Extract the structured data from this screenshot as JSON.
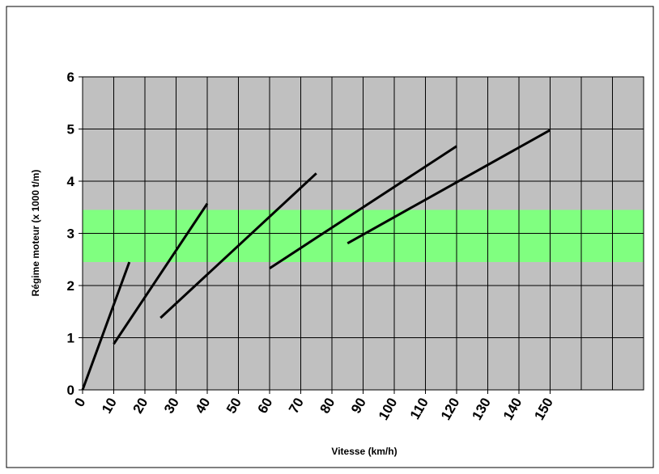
{
  "chart_data": {
    "type": "line",
    "xlabel": "Vitesse (km/h)",
    "ylabel": "Régime moteur (x 1000 t/m)",
    "xlim": [
      0,
      180
    ],
    "ylim": [
      0,
      6
    ],
    "xticks": [
      0,
      10,
      20,
      30,
      40,
      50,
      60,
      70,
      80,
      90,
      100,
      110,
      120,
      130,
      140,
      150
    ],
    "xgrid_extra": [
      160,
      170
    ],
    "yticks": [
      0,
      1,
      2,
      3,
      4,
      5,
      6
    ],
    "grid": true,
    "background": "#c0c0c0",
    "band": [
      2.45,
      3.45
    ],
    "band_color": "#80ff80",
    "series": [
      {
        "color": "#000000",
        "x": [
          0,
          15
        ],
        "values": [
          0,
          2.45
        ]
      },
      {
        "color": "#000000",
        "x": [
          10,
          40
        ],
        "values": [
          0.88,
          3.57
        ]
      },
      {
        "color": "#000000",
        "x": [
          25,
          75
        ],
        "values": [
          1.38,
          4.15
        ]
      },
      {
        "color": "#000000",
        "x": [
          60,
          120
        ],
        "values": [
          2.33,
          4.67
        ]
      },
      {
        "color": "#000000",
        "x": [
          85,
          150
        ],
        "values": [
          2.81,
          4.98
        ]
      }
    ]
  }
}
